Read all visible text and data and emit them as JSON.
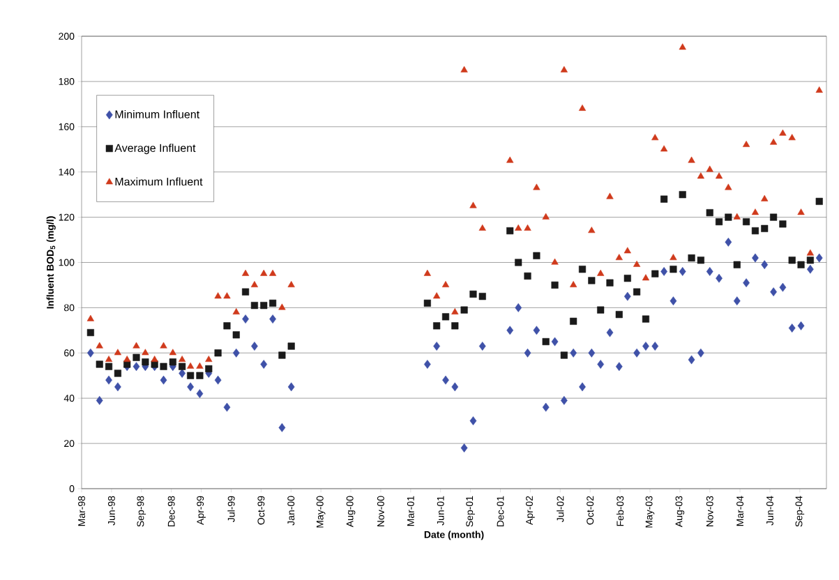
{
  "chart_data": {
    "type": "scatter",
    "xlabel": "Date (month)",
    "ylabel": "Influent BOD$_{5}$ (mg/l)",
    "x": [
      "1998-03-31",
      "1998-04-30",
      "1998-05-31",
      "1998-06-30",
      "1998-07-31",
      "1998-08-31",
      "1998-09-30",
      "1998-10-31",
      "1998-11-30",
      "1998-12-31",
      "1999-01-31",
      "1999-02-28",
      "1999-03-31",
      "1999-04-30",
      "1999-05-31",
      "1999-06-30",
      "1999-07-31",
      "1999-08-31",
      "1999-09-30",
      "1999-10-31",
      "1999-11-30",
      "1999-12-31",
      "2000-01-31",
      "2001-04-30",
      "2001-05-31",
      "2001-06-30",
      "2001-07-31",
      "2001-08-31",
      "2001-09-30",
      "2001-10-31",
      "2002-01-31",
      "2002-02-28",
      "2002-03-31",
      "2002-04-30",
      "2002-05-31",
      "2002-06-30",
      "2002-07-31",
      "2002-08-31",
      "2002-09-30",
      "2002-10-31",
      "2002-11-30",
      "2002-12-31",
      "2003-01-31",
      "2003-02-28",
      "2003-03-31",
      "2003-04-30",
      "2003-05-31",
      "2003-06-30",
      "2003-07-31",
      "2003-08-31",
      "2003-09-30",
      "2003-10-31",
      "2003-11-30",
      "2003-12-31",
      "2004-01-31",
      "2004-02-29",
      "2004-03-31",
      "2004-04-30",
      "2004-05-31",
      "2004-06-30",
      "2004-07-31",
      "2004-08-31",
      "2004-09-30",
      "2004-10-31",
      "2004-11-30"
    ],
    "series": [
      {
        "name": "Minimum Influent",
        "color": "#3f51a8",
        "marker": "diamond",
        "values": [
          60,
          39,
          48,
          45,
          54,
          54,
          54,
          54,
          48,
          54,
          51,
          45,
          42,
          51,
          48,
          36,
          60,
          75,
          63,
          55,
          75,
          27,
          45,
          55,
          63,
          48,
          45,
          18,
          30,
          63,
          70,
          80,
          60,
          70,
          36,
          65,
          39,
          60,
          45,
          60,
          55,
          69,
          54,
          85,
          60,
          63,
          63,
          96,
          83,
          96,
          57,
          60,
          96,
          93,
          109,
          83,
          91,
          102,
          99,
          87,
          89,
          71,
          72,
          97,
          102
        ]
      },
      {
        "name": "Average Influent",
        "color": "#1a1a1a",
        "marker": "square",
        "values": [
          69,
          55,
          54,
          51,
          55,
          58,
          56,
          55,
          54,
          56,
          54,
          50,
          50,
          53,
          60,
          72,
          68,
          87,
          81,
          81,
          82,
          59,
          63,
          82,
          72,
          76,
          72,
          79,
          86,
          85,
          114,
          100,
          94,
          103,
          65,
          90,
          59,
          74,
          97,
          92,
          79,
          91,
          77,
          93,
          87,
          75,
          95,
          128,
          97,
          130,
          102,
          101,
          122,
          118,
          120,
          99,
          118,
          114,
          115,
          120,
          117,
          101,
          99,
          101,
          127
        ]
      },
      {
        "name": "Maximum Influent",
        "color": "#d03a1c",
        "marker": "triangle",
        "values": [
          75,
          63,
          57,
          60,
          57,
          63,
          60,
          57,
          63,
          60,
          57,
          54,
          54,
          57,
          85,
          85,
          78,
          95,
          90,
          95,
          95,
          80,
          90,
          95,
          85,
          90,
          78,
          185,
          125,
          115,
          145,
          115,
          115,
          133,
          120,
          100,
          185,
          90,
          168,
          114,
          95,
          129,
          102,
          105,
          99,
          93,
          155,
          150,
          102,
          195,
          145,
          138,
          141,
          138,
          133,
          120,
          152,
          122,
          128,
          153,
          157,
          155,
          122,
          104,
          176
        ]
      }
    ],
    "xlim": [
      "1998-03-01",
      "2004-12-24"
    ],
    "xticks": [
      {
        "value": "1998-03-01",
        "label": "Mar-98"
      },
      {
        "value": "1998-06-09",
        "label": "Jun-98"
      },
      {
        "value": "1998-09-17",
        "label": "Sep-98"
      },
      {
        "value": "1998-12-26",
        "label": "Dec-98"
      },
      {
        "value": "1999-04-05",
        "label": "Apr-99"
      },
      {
        "value": "1999-07-14",
        "label": "Jul-99"
      },
      {
        "value": "1999-10-22",
        "label": "Oct-99"
      },
      {
        "value": "2000-01-30",
        "label": "Jan-00"
      },
      {
        "value": "2000-05-09",
        "label": "May-00"
      },
      {
        "value": "2000-08-17",
        "label": "Aug-00"
      },
      {
        "value": "2000-11-25",
        "label": "Nov-00"
      },
      {
        "value": "2001-03-05",
        "label": "Mar-01"
      },
      {
        "value": "2001-06-13",
        "label": "Jun-01"
      },
      {
        "value": "2001-09-21",
        "label": "Sep-01"
      },
      {
        "value": "2001-12-30",
        "label": "Dec-01"
      },
      {
        "value": "2002-04-09",
        "label": "Apr-02"
      },
      {
        "value": "2002-07-18",
        "label": "Jul-02"
      },
      {
        "value": "2002-10-26",
        "label": "Oct-02"
      },
      {
        "value": "2003-02-03",
        "label": "Feb-03"
      },
      {
        "value": "2003-05-14",
        "label": "May-03"
      },
      {
        "value": "2003-08-22",
        "label": "Aug-03"
      },
      {
        "value": "2003-11-30",
        "label": "Nov-03"
      },
      {
        "value": "2004-03-10",
        "label": "Mar-04"
      },
      {
        "value": "2004-06-18",
        "label": "Jun-04"
      },
      {
        "value": "2004-09-26",
        "label": "Sep-04"
      }
    ],
    "ylim": [
      0,
      200
    ],
    "yticks": [
      0,
      20,
      40,
      60,
      80,
      100,
      120,
      140,
      160,
      180,
      200
    ],
    "grid": "y",
    "legend": "top left"
  }
}
